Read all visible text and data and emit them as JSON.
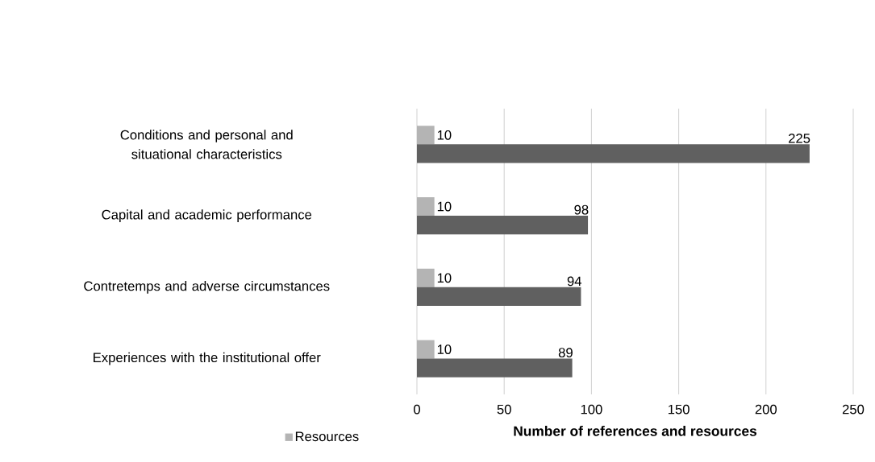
{
  "chart_data": {
    "type": "bar",
    "orientation": "horizontal",
    "xlabel": "Number of  references and resources",
    "categories": [
      "Conditions and personal and situational characteristics",
      "Capital and academic performance",
      "Contretemps and adverse circumstances",
      "Experiences with the institutional offer"
    ],
    "series": [
      {
        "name": "Resources",
        "color": "#b4b4b4",
        "values": [
          10,
          10,
          10,
          10
        ]
      },
      {
        "color": "#606060",
        "values": [
          225,
          98,
          94,
          89
        ]
      }
    ],
    "xlim": [
      0,
      250
    ],
    "xticks": [
      0,
      50,
      100,
      150,
      200,
      250
    ],
    "grid": "x",
    "legend": "bottom left",
    "data_labels": true
  }
}
